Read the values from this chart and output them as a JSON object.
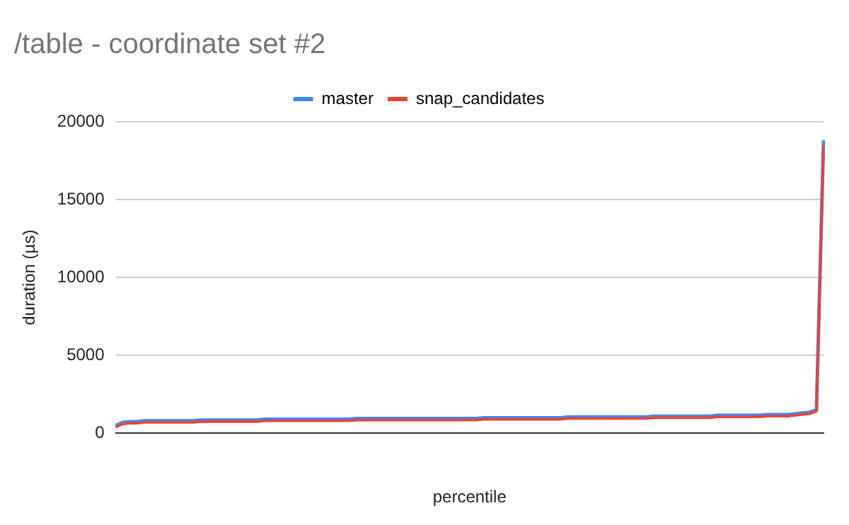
{
  "chart_data": {
    "type": "line",
    "title": "/table - coordinate set #2",
    "xlabel": "percentile",
    "ylabel": "duration (µs)",
    "categories": [
      null,
      null,
      null,
      null,
      null,
      null,
      null,
      null,
      null,
      null,
      null,
      null,
      null,
      null,
      null,
      null,
      null,
      null,
      null,
      null,
      null,
      null,
      null,
      null,
      null,
      null,
      null,
      null,
      null,
      null,
      null,
      null,
      null,
      null,
      null,
      null,
      null,
      null,
      null,
      null,
      null,
      null,
      null,
      null,
      null,
      null,
      null,
      null,
      null,
      null,
      null,
      null,
      null,
      null,
      null,
      null,
      null,
      null,
      null,
      null,
      null,
      null,
      null,
      null,
      null,
      null,
      null,
      null,
      null,
      null,
      null,
      null,
      null,
      null,
      null,
      null,
      null,
      null,
      null,
      null,
      null,
      null,
      null,
      null,
      null,
      null,
      null,
      null,
      null,
      null,
      null,
      null,
      null,
      null,
      null,
      null,
      null,
      null,
      null,
      null,
      null
    ],
    "series": [
      {
        "name": "master",
        "color": "#4285f4",
        "values": [
          500,
          700,
          750,
          750,
          800,
          800,
          800,
          800,
          800,
          800,
          800,
          800,
          850,
          850,
          850,
          850,
          850,
          850,
          850,
          850,
          850,
          900,
          900,
          900,
          900,
          900,
          900,
          900,
          900,
          900,
          900,
          900,
          900,
          900,
          950,
          950,
          950,
          950,
          950,
          950,
          950,
          950,
          950,
          950,
          950,
          950,
          950,
          950,
          950,
          950,
          950,
          950,
          1000,
          1000,
          1000,
          1000,
          1000,
          1000,
          1000,
          1000,
          1000,
          1000,
          1000,
          1000,
          1050,
          1050,
          1050,
          1050,
          1050,
          1050,
          1050,
          1050,
          1050,
          1050,
          1050,
          1050,
          1100,
          1100,
          1100,
          1100,
          1100,
          1100,
          1100,
          1100,
          1100,
          1150,
          1150,
          1150,
          1150,
          1150,
          1150,
          1150,
          1200,
          1200,
          1200,
          1200,
          1250,
          1300,
          1350,
          1500,
          18800
        ]
      },
      {
        "name": "snap_candidates",
        "color": "#ea4335",
        "values": [
          400,
          600,
          650,
          650,
          700,
          700,
          700,
          700,
          700,
          700,
          700,
          700,
          750,
          750,
          750,
          750,
          750,
          750,
          750,
          750,
          750,
          800,
          800,
          800,
          800,
          800,
          800,
          800,
          800,
          800,
          800,
          800,
          800,
          800,
          850,
          850,
          850,
          850,
          850,
          850,
          850,
          850,
          850,
          850,
          850,
          850,
          850,
          850,
          850,
          850,
          850,
          850,
          900,
          900,
          900,
          900,
          900,
          900,
          900,
          900,
          900,
          900,
          900,
          900,
          950,
          950,
          950,
          950,
          950,
          950,
          950,
          950,
          950,
          950,
          950,
          950,
          1000,
          1000,
          1000,
          1000,
          1000,
          1000,
          1000,
          1000,
          1000,
          1050,
          1050,
          1050,
          1050,
          1050,
          1050,
          1050,
          1100,
          1100,
          1100,
          1100,
          1150,
          1200,
          1250,
          1400,
          18500
        ]
      }
    ],
    "ylim": [
      0,
      20000
    ],
    "yticks": [
      0,
      5000,
      10000,
      15000,
      20000
    ],
    "grid": "y",
    "legend": "top",
    "marker": "none",
    "line_style": "solid"
  }
}
